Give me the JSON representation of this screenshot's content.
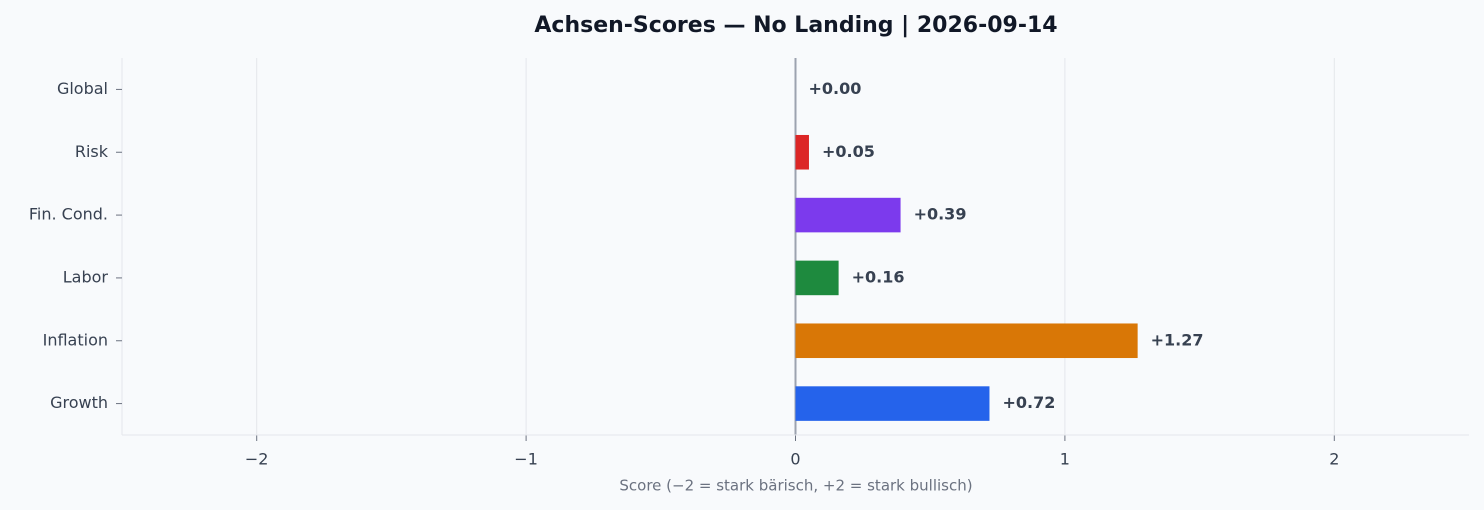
{
  "chart_data": {
    "type": "hbar",
    "title": "Achsen-Scores — No Landing | 2026-09-14",
    "xlabel": "Score (−2 = stark bärisch, +2 = stark bullisch)",
    "categories": [
      "Global",
      "Risk",
      "Fin. Cond.",
      "Labor",
      "Inflation",
      "Growth"
    ],
    "values": [
      0.0,
      0.05,
      0.39,
      0.16,
      1.27,
      0.72
    ],
    "value_labels": [
      "+0.00",
      "+0.05",
      "+0.39",
      "+0.16",
      "+1.27",
      "+0.72"
    ],
    "colors": [
      "#9ca3af",
      "#dc2626",
      "#7c3aed",
      "#1e8a3e",
      "#d97706",
      "#2563eb"
    ],
    "xlim": [
      -2.5,
      2.5
    ],
    "xticks": [
      {
        "value": -2,
        "label": "−2"
      },
      {
        "value": -1,
        "label": "−1"
      },
      0,
      1,
      2
    ],
    "grid": true
  }
}
